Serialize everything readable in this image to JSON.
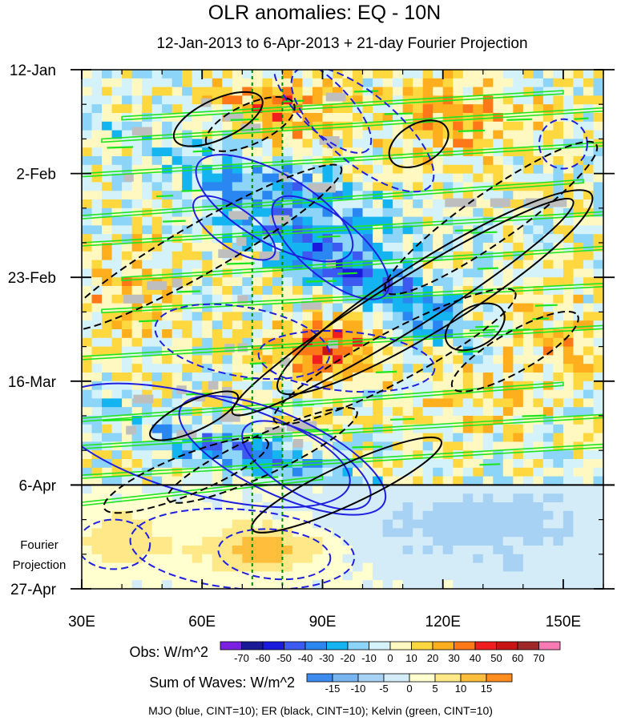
{
  "chart_data": {
    "type": "heatmap",
    "title": "OLR anomalies: EQ - 10N",
    "subtitle": "12-Jan-2013 to 6-Apr-2013 + 21-day Fourier Projection",
    "x_axis": {
      "range_deg": [
        30,
        160
      ],
      "ticks": [
        {
          "value": 30,
          "label": "30E"
        },
        {
          "value": 60,
          "label": "60E"
        },
        {
          "value": 90,
          "label": "90E"
        },
        {
          "value": 120,
          "label": "120E"
        },
        {
          "value": 150,
          "label": "150E"
        }
      ],
      "minor_step": 10
    },
    "y_axis": {
      "range_days": [
        0,
        105
      ],
      "inverted": true,
      "ticks": [
        {
          "value": 0,
          "label": "12-Jan"
        },
        {
          "value": 21,
          "label": "2-Feb"
        },
        {
          "value": 42,
          "label": "23-Feb"
        },
        {
          "value": 63,
          "label": "16-Mar"
        },
        {
          "value": 84,
          "label": "6-Apr"
        },
        {
          "value": 105,
          "label": "27-Apr"
        }
      ],
      "minor_step": 7,
      "projection_label_line1": "Fourier",
      "projection_label_line2": "Projection"
    },
    "reference_lines": {
      "observation_end_day": 84,
      "dotted_longitudes": [
        72.5,
        80
      ]
    },
    "obs_colorbar": {
      "label": "Obs: W/m^2",
      "tick_labels": [
        "-70",
        "-60",
        "-50",
        "-40",
        "-30",
        "-20",
        "-10",
        "0",
        "10",
        "20",
        "30",
        "40",
        "50",
        "60",
        "70"
      ],
      "colors": [
        "#7a22e0",
        "#1a1a96",
        "#1a1adc",
        "#3c5af0",
        "#2a86f0",
        "#14b4f0",
        "#8cd4f8",
        "#d4f2fa",
        "#fff8c0",
        "#ffd840",
        "#ffae1e",
        "#ff7818",
        "#f01e1e",
        "#c81414",
        "#a02828",
        "#f87ab4"
      ]
    },
    "waves_colorbar": {
      "label": "Sum of Waves: W/m^2",
      "tick_labels": [
        "-15",
        "-10",
        "-5",
        "0",
        "5",
        "10",
        "15"
      ],
      "colors": [
        "#3c8cf0",
        "#78b4f0",
        "#a8d2f4",
        "#d4ecf8",
        "#ffffd0",
        "#ffe888",
        "#ffbe3c",
        "#ff8c1e"
      ]
    },
    "legend_note": "MJO (blue, CINT=10); ER (black, CINT=10); Kelvin (green, CINT=10)",
    "series_colors": {
      "mjo": "#1f1fe0",
      "er": "#000000",
      "kelvin": "#1ee61e",
      "missing": "#bebebe",
      "dotted": "#008c00"
    },
    "mjo_contours": [
      {
        "cx": 68,
        "cy": 32,
        "rx": 12,
        "ry": 4,
        "angle": 35,
        "dashed": false
      },
      {
        "cx": 78,
        "cy": 28,
        "rx": 22,
        "ry": 7,
        "angle": 30,
        "dashed": false
      },
      {
        "cx": 92,
        "cy": 36,
        "rx": 18,
        "ry": 6,
        "angle": 40,
        "dashed": false
      },
      {
        "cx": 86,
        "cy": 80,
        "rx": 18,
        "ry": 6,
        "angle": 30,
        "dashed": false
      },
      {
        "cx": 80,
        "cy": 78,
        "rx": 28,
        "ry": 8,
        "angle": 25,
        "dashed": false
      },
      {
        "cx": 60,
        "cy": 76,
        "rx": 38,
        "ry": 10,
        "angle": 15,
        "dashed": false
      },
      {
        "cx": 90,
        "cy": 7,
        "rx": 16,
        "ry": 5,
        "angle": 45,
        "dashed": true
      },
      {
        "cx": 100,
        "cy": 12,
        "rx": 22,
        "ry": 7,
        "angle": 40,
        "dashed": true
      },
      {
        "cx": 70,
        "cy": 55,
        "rx": 22,
        "ry": 7,
        "angle": 10,
        "dashed": true
      },
      {
        "cx": 96,
        "cy": 59,
        "rx": 22,
        "ry": 6,
        "angle": 5,
        "dashed": true
      },
      {
        "cx": 78,
        "cy": 98,
        "rx": 14,
        "ry": 5,
        "angle": 5,
        "dashed": true
      },
      {
        "cx": 70,
        "cy": 97,
        "rx": 28,
        "ry": 8,
        "angle": 5,
        "dashed": true
      },
      {
        "cx": 38,
        "cy": 96,
        "rx": 9,
        "ry": 5,
        "angle": 0,
        "dashed": true
      },
      {
        "cx": 150,
        "cy": 15,
        "rx": 6,
        "ry": 5,
        "angle": 0,
        "dashed": true
      }
    ],
    "er_contours": [
      {
        "cx": 64,
        "cy": 10,
        "rx": 12,
        "ry": 4,
        "angle": -25,
        "dashed": false
      },
      {
        "cx": 114,
        "cy": 15,
        "rx": 8,
        "ry": 4,
        "angle": -30,
        "dashed": false
      },
      {
        "cx": 118,
        "cy": 45,
        "rx": 46,
        "ry": 7,
        "angle": -32,
        "dashed": false
      },
      {
        "cx": 110,
        "cy": 48,
        "rx": 50,
        "ry": 5,
        "angle": -32,
        "dashed": false
      },
      {
        "cx": 128,
        "cy": 52,
        "rx": 8,
        "ry": 4,
        "angle": -30,
        "dashed": false
      },
      {
        "cx": 58,
        "cy": 70,
        "rx": 12,
        "ry": 3,
        "angle": -25,
        "dashed": false
      },
      {
        "cx": 96,
        "cy": 84,
        "rx": 26,
        "ry": 4,
        "angle": -25,
        "dashed": false
      },
      {
        "cx": 72,
        "cy": 11,
        "rx": 12,
        "ry": 4,
        "angle": -25,
        "dashed": true
      },
      {
        "cx": 132,
        "cy": 30,
        "rx": 32,
        "ry": 5,
        "angle": -35,
        "dashed": true
      },
      {
        "cx": 60,
        "cy": 36,
        "rx": 40,
        "ry": 5,
        "angle": -30,
        "dashed": true
      },
      {
        "cx": 108,
        "cy": 58,
        "rx": 34,
        "ry": 5,
        "angle": -28,
        "dashed": true
      },
      {
        "cx": 75,
        "cy": 78,
        "rx": 26,
        "ry": 4,
        "angle": -25,
        "dashed": true
      },
      {
        "cx": 56,
        "cy": 82,
        "rx": 22,
        "ry": 4,
        "angle": -22,
        "dashed": true
      },
      {
        "cx": 138,
        "cy": 57,
        "rx": 18,
        "ry": 4,
        "angle": -30,
        "dashed": true
      }
    ],
    "kelvin_contours": [
      {
        "day": 8,
        "x0": 40,
        "x1": 150,
        "dy": 3
      },
      {
        "day": 12,
        "x0": 35,
        "x1": 160,
        "dy": 4
      },
      {
        "day": 19,
        "x0": 30,
        "x1": 160,
        "dy": 4
      },
      {
        "day": 27,
        "x0": 30,
        "x1": 155,
        "dy": 5
      },
      {
        "day": 33,
        "x0": 30,
        "x1": 160,
        "dy": 4
      },
      {
        "day": 40,
        "x0": 40,
        "x1": 160,
        "dy": 4
      },
      {
        "day": 47,
        "x0": 35,
        "x1": 160,
        "dy": 3
      },
      {
        "day": 56,
        "x0": 30,
        "x1": 160,
        "dy": 4
      },
      {
        "day": 68,
        "x0": 30,
        "x1": 150,
        "dy": 5
      },
      {
        "day": 74,
        "x0": 30,
        "x1": 160,
        "dy": 4
      },
      {
        "day": 80,
        "x0": 30,
        "x1": 160,
        "dy": 4
      },
      {
        "day": 86,
        "x0": 30,
        "x1": 90,
        "dy": 3
      }
    ],
    "seed": 20130112
  }
}
